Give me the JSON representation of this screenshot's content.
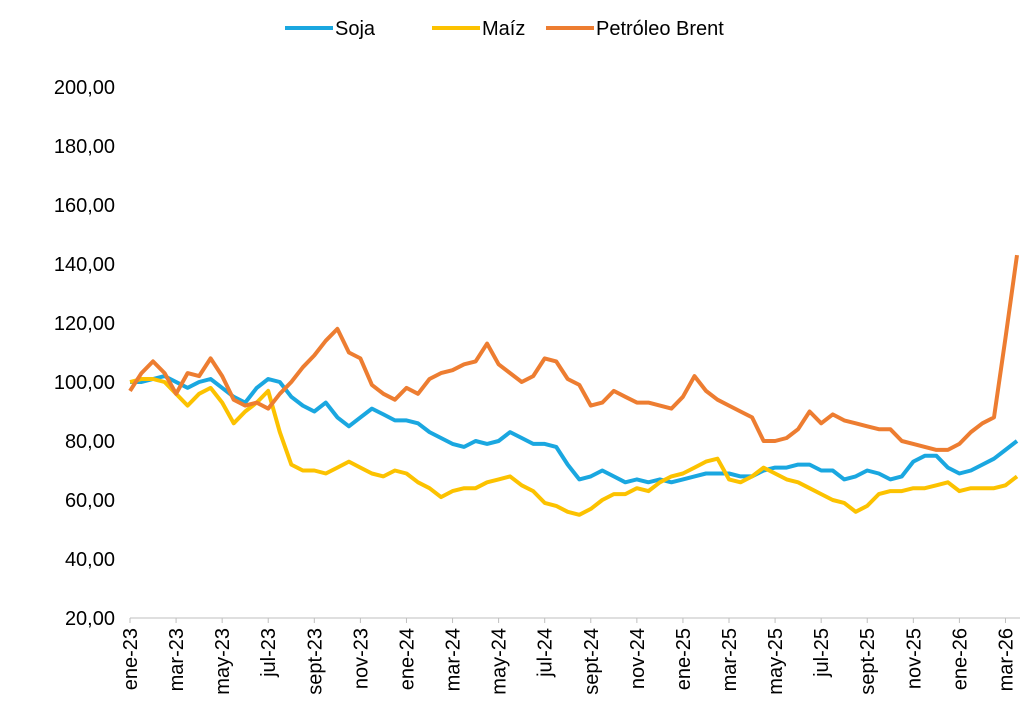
{
  "chart_data": {
    "type": "line",
    "categories": [
      "ene-23",
      null,
      null,
      null,
      "mar-23",
      null,
      null,
      null,
      "may-23",
      null,
      null,
      null,
      "jul-23",
      null,
      null,
      null,
      "sept-23",
      null,
      null,
      null,
      "nov-23",
      null,
      null,
      null,
      "ene-24",
      null,
      null,
      null,
      "mar-24",
      null,
      null,
      null,
      "may-24",
      null,
      null,
      null,
      "jul-24",
      null,
      null,
      null,
      "sept-24",
      null,
      null,
      null,
      "nov-24",
      null,
      null,
      null,
      "ene-25",
      null,
      null,
      null,
      "mar-25",
      null,
      null,
      null,
      "may-25",
      null,
      null,
      null,
      "jul-25",
      null,
      null,
      null,
      "sept-25",
      null,
      null,
      null,
      "nov-25",
      null,
      null,
      null,
      "ene-26",
      null,
      null,
      null,
      "mar-26",
      null
    ],
    "series": [
      {
        "name": "Soja",
        "color": "#1aa7e0",
        "values": [
          100,
          100,
          101,
          102,
          100,
          98,
          100,
          101,
          98,
          95,
          93,
          98,
          101,
          100,
          95,
          92,
          90,
          93,
          88,
          85,
          88,
          91,
          89,
          87,
          87,
          86,
          83,
          81,
          79,
          78,
          80,
          79,
          80,
          83,
          81,
          79,
          79,
          78,
          72,
          67,
          68,
          70,
          68,
          66,
          67,
          66,
          67,
          66,
          67,
          68,
          69,
          69,
          69,
          68,
          68,
          70,
          71,
          71,
          72,
          72,
          70,
          70,
          67,
          68,
          70,
          69,
          67,
          68,
          73,
          75,
          75,
          71,
          69,
          70,
          72,
          74,
          77,
          80
        ]
      },
      {
        "name": "Maíz",
        "color": "#fcc200",
        "values": [
          100,
          101,
          101,
          100,
          96,
          92,
          96,
          98,
          93,
          86,
          90,
          93,
          97,
          83,
          72,
          70,
          70,
          69,
          71,
          73,
          71,
          69,
          68,
          70,
          69,
          66,
          64,
          61,
          63,
          64,
          64,
          66,
          67,
          68,
          65,
          63,
          59,
          58,
          56,
          55,
          57,
          60,
          62,
          62,
          64,
          63,
          66,
          68,
          69,
          71,
          73,
          74,
          67,
          66,
          68,
          71,
          69,
          67,
          66,
          64,
          62,
          60,
          59,
          56,
          58,
          62,
          63,
          63,
          64,
          64,
          65,
          66,
          63,
          64,
          64,
          64,
          65,
          68
        ]
      },
      {
        "name": "Petróleo Brent",
        "color": "#ed7d31",
        "values": [
          97,
          103,
          107,
          103,
          96,
          103,
          102,
          108,
          102,
          94,
          92,
          93,
          91,
          96,
          100,
          105,
          109,
          114,
          118,
          110,
          108,
          99,
          96,
          94,
          98,
          96,
          101,
          103,
          104,
          106,
          107,
          113,
          106,
          103,
          100,
          102,
          108,
          107,
          101,
          99,
          92,
          93,
          97,
          95,
          93,
          93,
          92,
          91,
          95,
          102,
          97,
          94,
          92,
          90,
          88,
          80,
          80,
          81,
          84,
          90,
          86,
          89,
          87,
          86,
          85,
          84,
          84,
          80,
          79,
          78,
          77,
          77,
          79,
          83,
          86,
          88,
          115,
          143
        ]
      }
    ],
    "ylim": [
      20,
      200
    ],
    "yticks": [
      {
        "value": 20,
        "label": "20,00"
      },
      {
        "value": 40,
        "label": "40,00"
      },
      {
        "value": 60,
        "label": "60,00"
      },
      {
        "value": 80,
        "label": "80,00"
      },
      {
        "value": 100,
        "label": "100,00"
      },
      {
        "value": 120,
        "label": "120,00"
      },
      {
        "value": 140,
        "label": "140,00"
      },
      {
        "value": 160,
        "label": "160,00"
      },
      {
        "value": 180,
        "label": "180,00"
      },
      {
        "value": 200,
        "label": "200,00"
      }
    ],
    "legend": "top"
  }
}
